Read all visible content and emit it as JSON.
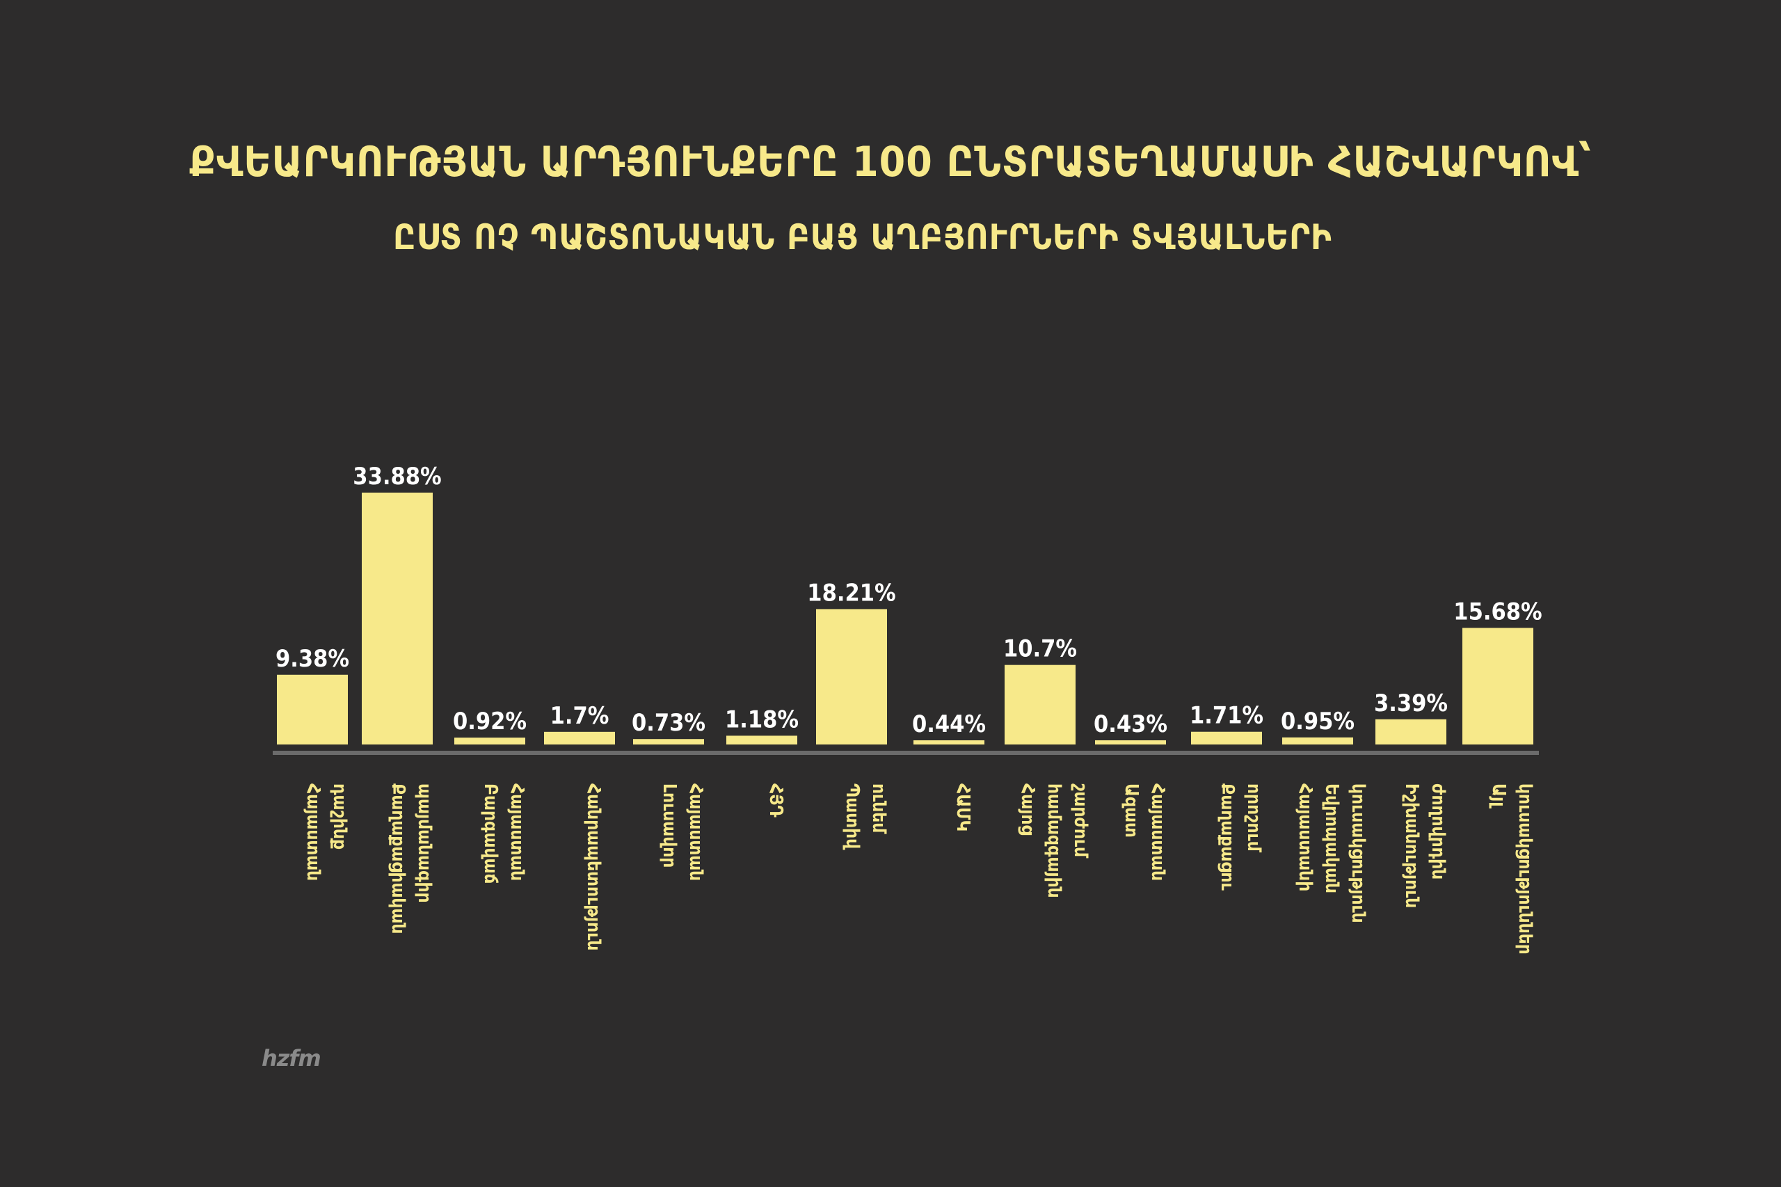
{
  "title": "ՔՎԵԱՐԿՈՒԹՅԱՆ ԱՐԴՅՈՒՆՔԵՐԸ 100 ԸՆՏՐԱՏԵՂԱՄԱՍԻ ՀԱՇՎԱՐԿՈՎ՝",
  "subtitle": "ԸՍՏ ՈՉ ՊԱՇՏՈՆԱԿԱՆ ԲԱՑ ԱՂԲՅՈՒՐՆԵՐԻ ՏՎՅԱԼՆԵՐԻ",
  "logo_text": "hzfm",
  "colors": {
    "background": "#2d2c2c",
    "bar": "#f7e98a",
    "text": "#f7e98a",
    "value_label": "#ffffff",
    "baseline": "#6b6b6b"
  },
  "chart_data": {
    "type": "bar",
    "categories": [
      "Հայաստան դաշինք",
      "Քաղաքացիական պայմանագիր",
      "Բարգավաճ Հայաստան",
      "Հանրապետություն",
      "Լուսավոր Հայաստան",
      "ՀՅԴ",
      "Պատիվ ունեմ",
      "ՀԱՄԿ",
      "Հայոց համազգային շարժում",
      "Ազատ Հայաստան",
      "Քաղաքացու որոշում",
      "Հայաստանի Եվրոպական կուսակցություն",
      "Իշխանություն ժողովրդին",
      "Այլ կուսակցություններ"
    ],
    "values": [
      9.38,
      33.88,
      0.92,
      1.7,
      0.73,
      1.18,
      18.21,
      0.44,
      10.7,
      0.43,
      1.71,
      0.95,
      3.39,
      15.68
    ],
    "labels": [
      "9.38%",
      "33.88%",
      "0.92%",
      "1.7%",
      "0.73%",
      "1.18%",
      "18.21%",
      "0.44%",
      "10.7%",
      "0.43%",
      "1.71%",
      "0.95%",
      "3.39%",
      "15.68%"
    ],
    "ylim": [
      0,
      33.88
    ],
    "grid": false,
    "legend": "none"
  }
}
